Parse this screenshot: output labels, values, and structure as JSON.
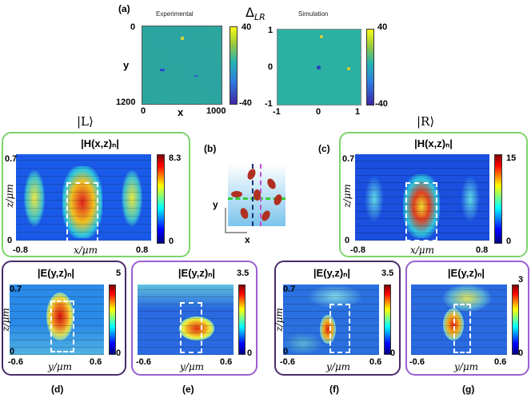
{
  "top": {
    "panel_label": "(a)",
    "exp_title": "Experimental",
    "sim_title": "Simulation",
    "delta_label": "Δ",
    "delta_sub": "LR",
    "exp_y0": "0",
    "exp_y1": "1200",
    "exp_ylabel": "y",
    "exp_x0": "0",
    "exp_x1": "1000",
    "exp_xlabel": "x",
    "cb1_top": "40",
    "cb1_bot": "-40",
    "sim_y1": "1",
    "sim_y0": "0",
    "sim_ym1": "-1",
    "sim_xm1": "-1",
    "sim_x0": "0",
    "sim_x1": "1",
    "cb2_top": "40",
    "cb2_bot": "-40"
  },
  "kets": {
    "left": "|L⟩",
    "right": "|R⟩"
  },
  "b": {
    "label": "(b)",
    "title": "|H(x,z)ₙ|",
    "ylabel": "z/μm",
    "xlabel": "x/μm",
    "y_top": "0.7",
    "y_bot": "0",
    "x_left": "-0.8",
    "x_right": "0.8",
    "cb_top": "8.3",
    "cb_bot": "0"
  },
  "c": {
    "label": "(c)",
    "title": "|H(x,z)ₙ|",
    "ylabel": "z/μm",
    "xlabel": "x/μm",
    "y_top": "0.7",
    "y_bot": "0",
    "x_left": "-0.8",
    "x_right": "0.8",
    "cb_top": "15",
    "cb_bot": "0"
  },
  "inset": {
    "y_axis": "y",
    "x_axis": "x"
  },
  "d": {
    "label": "(d)",
    "title": "|E(y,z)ₙ|",
    "ylabel": "z/μm",
    "xlabel": "y/μm",
    "y_top": "0.7",
    "y_bot": "0",
    "x_left": "-0.6",
    "x_right": "0.6",
    "cb_top": "5",
    "cb_bot": "0"
  },
  "e": {
    "label": "(e)",
    "title": "|E(y,z)ₙ|",
    "xlabel": "y/μm",
    "x_left": "-0.6",
    "x_right": "0.6",
    "cb_top": "3.5",
    "cb_bot": "0"
  },
  "f": {
    "label": "(f)",
    "title": "|E(y,z)ₙ|",
    "ylabel": "z/μm",
    "xlabel": "y/μm",
    "y_top": "0.7",
    "y_bot": "0",
    "x_left": "-0.6",
    "x_right": "0.6",
    "cb_top": "3.5",
    "cb_bot": "0"
  },
  "g": {
    "label": "(g)",
    "title": "|E(y,z)ₙ|",
    "xlabel": "y/μm",
    "x_left": "-0.6",
    "x_right": "0.6",
    "cb_top": "3",
    "cb_bot": "0"
  },
  "colors": {
    "green_frame": "#7ed36a",
    "purple_frame": "#9a5fd0",
    "dark_purple_frame": "#4a2a6a"
  }
}
